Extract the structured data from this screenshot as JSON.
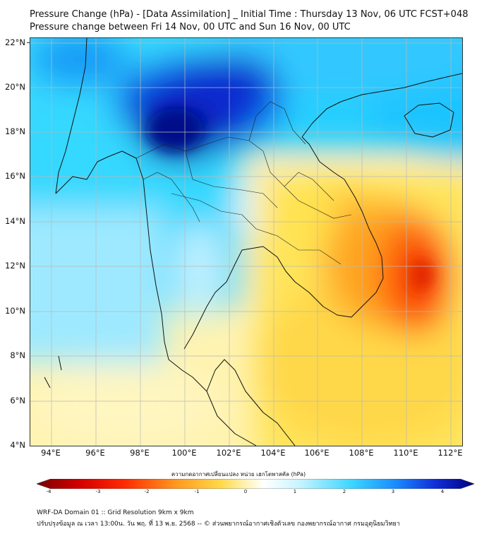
{
  "title": {
    "line1": "Pressure Change (hPa) - [Data Assimilation] _ Initial Time : Thursday 13 Nov, 06 UTC FCST+048",
    "line2": "Pressure change between Fri 14 Nov, 00 UTC and Sun 16 Nov, 00 UTC"
  },
  "map": {
    "lat_labels": [
      "22°N",
      "20°N",
      "18°N",
      "16°N",
      "14°N",
      "12°N",
      "10°N",
      "8°N",
      "6°N",
      "4°N"
    ],
    "lon_labels": [
      "94°E",
      "96°E",
      "98°E",
      "100°E",
      "102°E",
      "104°E",
      "106°E",
      "108°E",
      "110°E",
      "112°E"
    ],
    "lat_range": [
      4,
      22.2
    ],
    "lon_range": [
      93,
      112.5
    ],
    "gridlines": true
  },
  "colorbar": {
    "title": "ความกดอากาศเปลี่ยนแปลง หน่วย เฮกโตพาสคัล (hPa)",
    "ticks": [
      "-4",
      "-3",
      "-2",
      "-1",
      "0",
      "1",
      "2",
      "3",
      "4"
    ],
    "range": [
      -4.3,
      4.3
    ],
    "colors": [
      "#7a0000",
      "#d40000",
      "#ff2a00",
      "#ff7a10",
      "#ffc23a",
      "#fff1a8",
      "#ffffff",
      "#c8f4ff",
      "#3dd6ff",
      "#1a8cff",
      "#1030d8",
      "#000080"
    ]
  },
  "footer": {
    "line1": "WRF-DA Domain 01 :: Grid Resolution 9km x 9km",
    "line2": "ปรับปรุงข้อมูล ณ เวลา 13:00น. วัน พฤ. ที่ 13 พ.ย. 2568 -- © ส่วนพยากรณ์อากาศเชิงตัวเลข กองพยากรณ์อากาศ กรมอุตุนิยมวิทยา"
  }
}
